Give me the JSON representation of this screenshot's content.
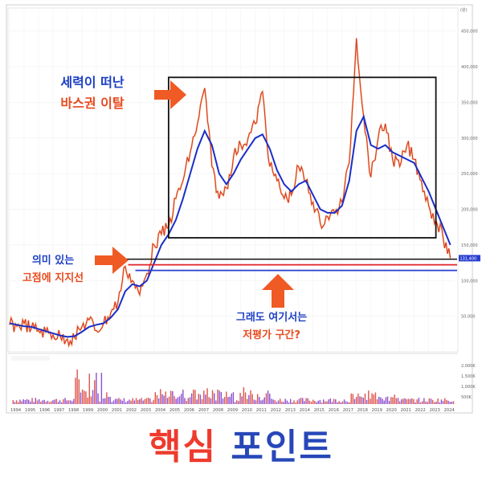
{
  "chart_data": {
    "type": "line",
    "y_ticks": [
      "450,000",
      "400,000",
      "350,000",
      "300,000",
      "250,000",
      "200,000",
      "150,000",
      "100,000",
      "50,000"
    ],
    "y_unit": "(원)",
    "x_ticks": [
      "1994",
      "1995",
      "1996",
      "1997",
      "1998",
      "1999",
      "2000",
      "2001",
      "2002",
      "2003",
      "2004",
      "2005",
      "2006",
      "2007",
      "2008",
      "2009",
      "2010",
      "2011",
      "2012",
      "2013",
      "2014",
      "2015",
      "2016",
      "2017",
      "2018",
      "2019",
      "2020",
      "2021",
      "2022",
      "2023",
      "2024"
    ],
    "last_price_label": "131,400",
    "vol_ticks": [
      "2,000K",
      "1,500K",
      "1,000K",
      "500K"
    ],
    "x": [
      1994.0,
      1994.5,
      1995.0,
      1995.5,
      1996.0,
      1996.5,
      1997.0,
      1997.5,
      1998.0,
      1998.5,
      1999.0,
      1999.5,
      2000.0,
      2000.5,
      2001.0,
      2001.5,
      2002.0,
      2002.5,
      2003.0,
      2003.5,
      2004.0,
      2004.5,
      2005.0,
      2005.5,
      2006.0,
      2006.5,
      2007.0,
      2007.5,
      2008.0,
      2008.5,
      2009.0,
      2009.5,
      2010.0,
      2010.5,
      2011.0,
      2011.5,
      2012.0,
      2012.5,
      2013.0,
      2013.5,
      2014.0,
      2014.5,
      2015.0,
      2015.5,
      2016.0,
      2016.5,
      2017.0,
      2017.5,
      2018.0,
      2018.5,
      2019.0,
      2019.5,
      2020.0,
      2020.5,
      2021.0,
      2021.5,
      2022.0,
      2022.5,
      2023.0,
      2023.5,
      2024.0,
      2024.5
    ],
    "series": [
      {
        "values": [
          38000,
          36000,
          40000,
          33000,
          30000,
          28000,
          24000,
          22000,
          18000,
          20000,
          35000,
          45000,
          30000,
          40000,
          55000,
          70000,
          120000,
          100000,
          80000,
          110000,
          150000,
          165000,
          175000,
          215000,
          240000,
          280000,
          320000,
          370000,
          260000,
          215000,
          230000,
          275000,
          290000,
          300000,
          320000,
          365000,
          260000,
          240000,
          215000,
          220000,
          260000,
          240000,
          210000,
          180000,
          190000,
          195000,
          210000,
          265000,
          440000,
          330000,
          245000,
          300000,
          320000,
          270000,
          260000,
          290000,
          270000,
          240000,
          205000,
          185000,
          160000,
          131400
        ]
      },
      {
        "values": [
          40000,
          38000,
          36000,
          35000,
          32000,
          29000,
          26000,
          23000,
          21000,
          22000,
          28000,
          35000,
          38000,
          40000,
          48000,
          60000,
          85000,
          95000,
          92000,
          100000,
          125000,
          150000,
          165000,
          185000,
          215000,
          250000,
          285000,
          310000,
          290000,
          250000,
          235000,
          250000,
          270000,
          285000,
          300000,
          305000,
          285000,
          255000,
          235000,
          225000,
          235000,
          240000,
          220000,
          200000,
          195000,
          195000,
          205000,
          240000,
          310000,
          330000,
          290000,
          285000,
          290000,
          280000,
          275000,
          270000,
          265000,
          245000,
          225000,
          200000,
          175000,
          150000
        ]
      }
    ],
    "band": {
      "low": 160000,
      "high": 385000
    },
    "support": {
      "price": 130000
    }
  },
  "callouts": {
    "top_left_line1": "세력이 떠난",
    "top_left_line2": "바스권 이탈",
    "left_line1": "의미 있는",
    "left_line2": "고점에 지지선",
    "bottom_line1": "그래도 여기서는",
    "bottom_line2": "저평가 구간?"
  },
  "footer": {
    "word1": "핵심",
    "word2": "포인트"
  },
  "colors": {
    "price": "#d8362b",
    "ma": "#1a2fc7",
    "box": "#111111",
    "red_line": "#e0232a",
    "blue_line": "#2a3fd0",
    "arrow": "#f05a25",
    "callout_blue": "#1d3fc4",
    "callout_red": "#e84a1e"
  }
}
